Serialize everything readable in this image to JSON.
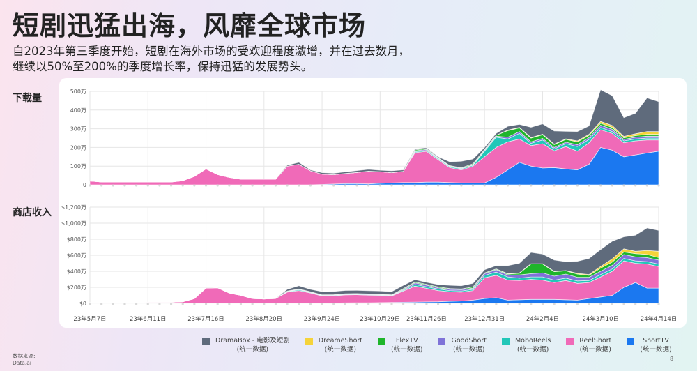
{
  "title": "短剧迅猛出海，风靡全球市场",
  "subtitle": {
    "line1": "自2023年第三季度开始，短剧在海外市场的受欢迎程度激增，并在过去数月，",
    "line2": "继续以50%至200%的季度增长率，保持迅猛的发展势头。"
  },
  "sections": {
    "downloads_label": "下载量",
    "revenue_label": "商店收入"
  },
  "source": {
    "label": "数据来源:",
    "name": "Data.ai"
  },
  "page_number": "8",
  "legend": [
    {
      "name": "DramaBox - 电影及短剧",
      "sub": "(统一数据)",
      "color": "#5f6b7c"
    },
    {
      "name": "DreameShort",
      "sub": "(统一数据)",
      "color": "#f5d33a"
    },
    {
      "name": "FlexTV",
      "sub": "(统一数据)",
      "color": "#1fb52b"
    },
    {
      "name": "GoodShort",
      "sub": "(统一数据)",
      "color": "#7f73d8"
    },
    {
      "name": "MoboReels",
      "sub": "(统一数据)",
      "color": "#22c7b8"
    },
    {
      "name": "ReelShort",
      "sub": "(统一数据)",
      "color": "#f06ab8"
    },
    {
      "name": "ShortTV",
      "sub": "(统一数据)",
      "color": "#1b78f0"
    }
  ],
  "chart_data": [
    {
      "type": "area",
      "stacked": true,
      "title": "下载量",
      "ylabel": "",
      "ylim": [
        0,
        500
      ],
      "yticks": [
        "0",
        "100万",
        "200万",
        "300万",
        "400万",
        "500万"
      ],
      "xtick_labels": [
        "23年5月7日",
        "23年6月11日",
        "23年7月16日",
        "23年8月20日",
        "23年9月24日",
        "23年10月29日",
        "23年11月26日",
        "23年12月31日",
        "24年2月4日",
        "24年3月10日",
        "24年4月14日"
      ],
      "xtick_index": [
        0,
        5,
        10,
        15,
        20,
        25,
        29,
        34,
        39,
        44,
        49
      ],
      "n_points": 50,
      "series": [
        {
          "name": "ShortTV",
          "values": [
            0,
            0,
            0,
            0,
            0,
            0,
            0,
            0,
            0,
            0,
            0,
            0,
            0,
            0,
            0,
            0,
            0,
            0,
            0,
            0,
            2,
            4,
            6,
            6,
            5,
            8,
            10,
            12,
            12,
            14,
            14,
            12,
            10,
            10,
            10,
            40,
            80,
            120,
            100,
            90,
            92,
            85,
            80,
            110,
            200,
            185,
            150,
            160,
            170,
            180
          ]
        },
        {
          "name": "ReelShort",
          "values": [
            20,
            15,
            15,
            15,
            15,
            15,
            15,
            15,
            22,
            45,
            85,
            55,
            40,
            30,
            30,
            30,
            30,
            100,
            110,
            75,
            55,
            50,
            55,
            60,
            68,
            62,
            55,
            60,
            160,
            165,
            120,
            80,
            70,
            90,
            140,
            160,
            150,
            125,
            110,
            130,
            90,
            120,
            100,
            115,
            95,
            90,
            75,
            75,
            70,
            60
          ]
        },
        {
          "name": "MoboReels",
          "values": [
            0,
            0,
            0,
            0,
            0,
            0,
            0,
            0,
            0,
            0,
            0,
            0,
            0,
            0,
            0,
            0,
            0,
            0,
            0,
            0,
            0,
            0,
            0,
            0,
            0,
            0,
            0,
            0,
            5,
            5,
            5,
            5,
            5,
            5,
            30,
            55,
            15,
            30,
            12,
            20,
            10,
            15,
            25,
            18,
            12,
            10,
            10,
            10,
            10,
            10
          ]
        },
        {
          "name": "GoodShort",
          "values": [
            0,
            0,
            0,
            0,
            0,
            0,
            0,
            0,
            0,
            0,
            0,
            0,
            0,
            0,
            0,
            0,
            0,
            0,
            0,
            0,
            0,
            0,
            0,
            0,
            0,
            0,
            0,
            0,
            5,
            5,
            3,
            3,
            3,
            3,
            5,
            5,
            10,
            10,
            8,
            8,
            8,
            8,
            10,
            10,
            12,
            12,
            8,
            10,
            10,
            10
          ]
        },
        {
          "name": "FlexTV",
          "values": [
            0,
            0,
            0,
            0,
            0,
            0,
            0,
            0,
            0,
            0,
            0,
            0,
            0,
            0,
            0,
            0,
            0,
            0,
            0,
            0,
            0,
            0,
            0,
            0,
            0,
            0,
            0,
            0,
            5,
            5,
            3,
            3,
            3,
            5,
            5,
            5,
            35,
            20,
            20,
            20,
            15,
            15,
            15,
            12,
            10,
            10,
            8,
            8,
            10,
            10
          ]
        },
        {
          "name": "DreameShort",
          "values": [
            0,
            0,
            0,
            0,
            0,
            0,
            0,
            0,
            0,
            0,
            0,
            0,
            0,
            0,
            0,
            0,
            0,
            0,
            0,
            0,
            0,
            0,
            0,
            0,
            0,
            0,
            0,
            0,
            0,
            0,
            0,
            0,
            0,
            0,
            0,
            0,
            3,
            3,
            3,
            3,
            3,
            3,
            5,
            5,
            10,
            10,
            8,
            10,
            15,
            15
          ]
        },
        {
          "name": "DramaBox",
          "values": [
            0,
            0,
            0,
            0,
            0,
            0,
            0,
            0,
            0,
            0,
            0,
            0,
            0,
            0,
            0,
            0,
            0,
            5,
            10,
            5,
            8,
            8,
            8,
            10,
            10,
            8,
            10,
            8,
            5,
            5,
            5,
            20,
            35,
            25,
            10,
            10,
            20,
            15,
            55,
            55,
            70,
            40,
            50,
            45,
            170,
            160,
            100,
            110,
            180,
            160
          ]
        }
      ]
    },
    {
      "type": "area",
      "stacked": true,
      "title": "商店收入",
      "ylabel": "",
      "ylim": [
        0,
        1200
      ],
      "yticks": [
        "$0",
        "$200万",
        "$400万",
        "$600万",
        "$800万",
        "$1,000万",
        "$1,200万"
      ],
      "xtick_labels": [
        "23年5月7日",
        "23年6月11日",
        "23年7月16日",
        "23年8月20日",
        "23年9月24日",
        "23年10月29日",
        "23年11月26日",
        "23年12月31日",
        "24年2月4日",
        "24年3月10日",
        "24年4月14日"
      ],
      "xtick_index": [
        0,
        5,
        10,
        15,
        20,
        25,
        29,
        34,
        39,
        44,
        49
      ],
      "n_points": 50,
      "series": [
        {
          "name": "ShortTV",
          "values": [
            0,
            0,
            0,
            0,
            0,
            0,
            0,
            0,
            0,
            0,
            0,
            0,
            0,
            0,
            0,
            0,
            0,
            0,
            0,
            0,
            2,
            4,
            6,
            8,
            8,
            10,
            12,
            14,
            16,
            18,
            20,
            25,
            30,
            40,
            60,
            70,
            40,
            45,
            50,
            50,
            50,
            45,
            40,
            60,
            80,
            100,
            200,
            260,
            190,
            190
          ]
        },
        {
          "name": "ReelShort",
          "values": [
            10,
            10,
            10,
            10,
            10,
            15,
            15,
            15,
            20,
            60,
            190,
            195,
            130,
            100,
            60,
            55,
            60,
            140,
            160,
            130,
            90,
            90,
            100,
            100,
            95,
            90,
            80,
            140,
            200,
            170,
            140,
            120,
            110,
            120,
            260,
            280,
            250,
            240,
            250,
            240,
            210,
            240,
            210,
            200,
            250,
            300,
            330,
            240,
            300,
            270
          ]
        },
        {
          "name": "MoboReels",
          "values": [
            0,
            0,
            0,
            0,
            0,
            0,
            0,
            0,
            0,
            0,
            0,
            0,
            0,
            0,
            0,
            0,
            0,
            5,
            10,
            5,
            5,
            5,
            5,
            5,
            5,
            5,
            5,
            10,
            20,
            20,
            20,
            15,
            15,
            15,
            30,
            40,
            40,
            30,
            30,
            40,
            30,
            30,
            30,
            25,
            30,
            30,
            30,
            30,
            30,
            30
          ]
        },
        {
          "name": "GoodShort",
          "values": [
            0,
            0,
            0,
            0,
            0,
            0,
            0,
            0,
            0,
            0,
            0,
            0,
            0,
            0,
            0,
            0,
            0,
            5,
            5,
            5,
            5,
            5,
            5,
            5,
            5,
            5,
            5,
            10,
            20,
            20,
            15,
            15,
            15,
            15,
            20,
            30,
            25,
            40,
            40,
            50,
            50,
            50,
            45,
            40,
            40,
            45,
            50,
            50,
            50,
            50
          ]
        },
        {
          "name": "FlexTV",
          "values": [
            0,
            0,
            0,
            0,
            0,
            0,
            0,
            0,
            0,
            0,
            0,
            0,
            0,
            0,
            0,
            0,
            0,
            5,
            5,
            5,
            5,
            5,
            5,
            5,
            5,
            5,
            5,
            10,
            10,
            10,
            10,
            10,
            10,
            15,
            10,
            10,
            10,
            20,
            120,
            110,
            55,
            40,
            40,
            25,
            40,
            40,
            30,
            40,
            40,
            30
          ]
        },
        {
          "name": "DreameShort",
          "values": [
            0,
            0,
            0,
            0,
            0,
            0,
            0,
            0,
            0,
            0,
            0,
            0,
            0,
            0,
            0,
            0,
            0,
            0,
            0,
            0,
            0,
            0,
            0,
            0,
            0,
            0,
            0,
            0,
            0,
            0,
            0,
            0,
            0,
            0,
            0,
            0,
            5,
            5,
            5,
            5,
            5,
            5,
            10,
            10,
            20,
            40,
            40,
            30,
            50,
            80
          ]
        },
        {
          "name": "DramaBox",
          "values": [
            0,
            0,
            0,
            0,
            0,
            0,
            0,
            0,
            0,
            0,
            0,
            0,
            0,
            0,
            0,
            0,
            0,
            20,
            40,
            30,
            40,
            40,
            40,
            40,
            40,
            40,
            40,
            40,
            30,
            25,
            30,
            40,
            40,
            45,
            40,
            40,
            100,
            120,
            140,
            120,
            140,
            110,
            150,
            200,
            210,
            220,
            150,
            200,
            280,
            260
          ]
        }
      ]
    }
  ]
}
